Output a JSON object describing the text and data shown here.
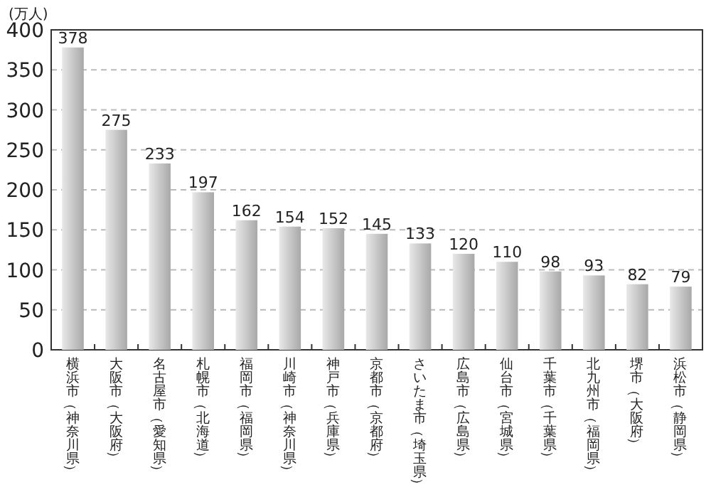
{
  "chart_data": {
    "type": "bar",
    "ylabel": "(万人)",
    "categories": [
      "横浜市（神奈川県）",
      "大阪市（大阪府）",
      "名古屋市（愛知県）",
      "札幌市（北海道）",
      "福岡市（福岡県）",
      "川崎市（神奈川県）",
      "神戸市（兵庫県）",
      "京都市（京都府）",
      "さいたま市（埼玉県）",
      "広島市（広島県）",
      "仙台市（宮城県）",
      "千葉市（千葉県）",
      "北九州市（福岡県）",
      "堺市（大阪府）",
      "浜松市（静岡県）"
    ],
    "values": [
      378,
      275,
      233,
      197,
      162,
      154,
      152,
      145,
      133,
      120,
      110,
      98,
      93,
      82,
      79
    ],
    "color": "#c8c8c8",
    "ylim": [
      0,
      400
    ],
    "yticks": [
      0,
      50,
      100,
      150,
      200,
      250,
      300,
      350,
      400
    ],
    "grid": "y",
    "line_style": "dashed",
    "data_labels": true
  }
}
